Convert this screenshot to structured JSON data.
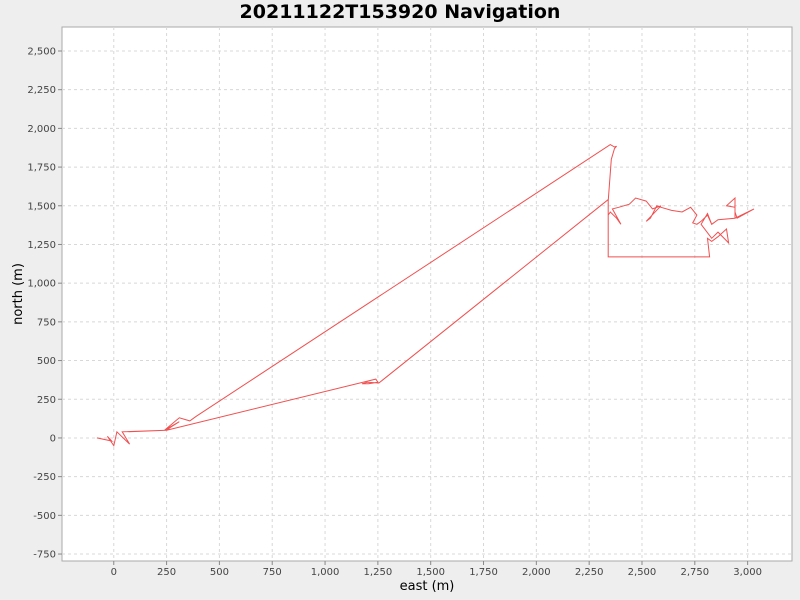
{
  "chart_data": {
    "type": "line",
    "title": "20211122T153920 Navigation",
    "xlabel": "east (m)",
    "ylabel": "north (m)",
    "xlim": [
      -245,
      3210
    ],
    "ylim": [
      -795,
      2655
    ],
    "x_ticks": [
      0,
      250,
      500,
      750,
      1000,
      1250,
      1500,
      1750,
      2000,
      2250,
      2500,
      2750,
      3000
    ],
    "y_ticks": [
      -750,
      -500,
      -250,
      0,
      250,
      500,
      750,
      1000,
      1250,
      1500,
      1750,
      2000,
      2250,
      2500
    ],
    "grid": true,
    "legend": "none",
    "series_color": "#f05050",
    "series": [
      {
        "x": [
          -80,
          -10,
          -30,
          0,
          15,
          60,
          75,
          40,
          250,
          270,
          310,
          240,
          310,
          360,
          390,
          2350,
          2370,
          2380,
          2370,
          2355,
          2340,
          2340,
          2820,
          2810,
          2830,
          2860,
          2900,
          2910,
          2860,
          2830,
          2780,
          2810,
          2830,
          2860,
          2940,
          3030,
          2950,
          2940,
          2940,
          2900,
          2940,
          2940,
          2860,
          2830,
          2810,
          2780,
          2760,
          2740,
          2760,
          2730,
          2690,
          2640,
          2590,
          2570,
          2540,
          2520,
          2590,
          2550,
          2520,
          2470,
          2440,
          2390,
          2360,
          2400,
          2380,
          2350,
          2340,
          2340,
          2340,
          2340,
          1255,
          1200,
          1175,
          1205,
          1250,
          1240,
          250,
          70
        ],
        "y": [
          0,
          -20,
          10,
          -50,
          40,
          -20,
          -40,
          40,
          50,
          70,
          105,
          50,
          130,
          110,
          140,
          1895,
          1880,
          1885,
          1870,
          1800,
          1530,
          1170,
          1170,
          1290,
          1270,
          1300,
          1350,
          1260,
          1330,
          1290,
          1380,
          1450,
          1380,
          1410,
          1420,
          1480,
          1420,
          1460,
          1550,
          1500,
          1490,
          1420,
          1410,
          1380,
          1440,
          1400,
          1380,
          1390,
          1440,
          1490,
          1460,
          1470,
          1490,
          1500,
          1420,
          1400,
          1500,
          1480,
          1530,
          1550,
          1510,
          1490,
          1480,
          1380,
          1420,
          1460,
          1440,
          1470,
          1500,
          1540,
          355,
          360,
          350,
          350,
          360,
          380,
          50,
          40
        ]
      }
    ]
  }
}
